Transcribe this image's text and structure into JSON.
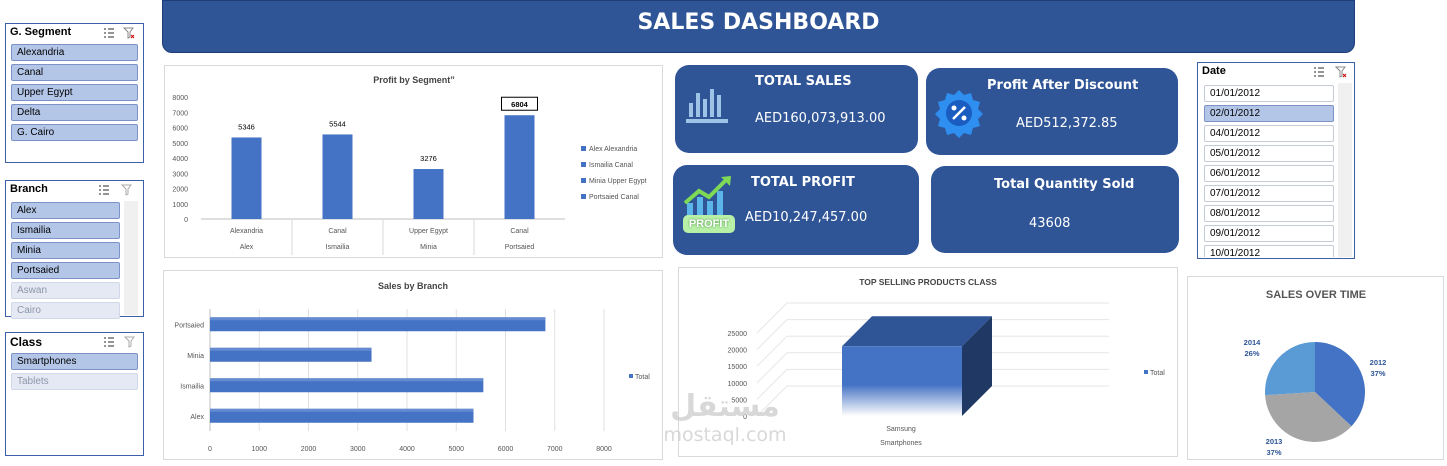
{
  "banner": {
    "title": "SALES DASHBOARD"
  },
  "slicers": {
    "segment": {
      "title": "G. Segment",
      "items": [
        {
          "label": "Alexandria",
          "selected": true
        },
        {
          "label": "Canal",
          "selected": true
        },
        {
          "label": "Upper Egypt",
          "selected": true
        },
        {
          "label": "Delta",
          "selected": true
        },
        {
          "label": "G. Cairo",
          "selected": true
        }
      ]
    },
    "branch": {
      "title": "Branch",
      "items": [
        {
          "label": "Alex",
          "selected": true
        },
        {
          "label": "Ismailia",
          "selected": true
        },
        {
          "label": "Minia",
          "selected": true
        },
        {
          "label": "Portsaied",
          "selected": true
        },
        {
          "label": "Aswan",
          "selected": false
        },
        {
          "label": "Cairo",
          "selected": false
        }
      ]
    },
    "class": {
      "title": "Class",
      "items": [
        {
          "label": "Smartphones",
          "selected": true
        },
        {
          "label": "Tablets",
          "selected": false
        }
      ]
    },
    "date": {
      "title": "Date",
      "items": [
        {
          "label": "01/01/2012",
          "selected": false
        },
        {
          "label": "02/01/2012",
          "selected": true
        },
        {
          "label": "04/01/2012",
          "selected": false
        },
        {
          "label": "05/01/2012",
          "selected": false
        },
        {
          "label": "06/01/2012",
          "selected": false
        },
        {
          "label": "07/01/2012",
          "selected": false
        },
        {
          "label": "08/01/2012",
          "selected": false
        },
        {
          "label": "09/01/2012",
          "selected": false
        },
        {
          "label": "10/01/2012",
          "selected": false
        }
      ]
    }
  },
  "kpis": {
    "total_sales": {
      "title": "TOTAL SALES",
      "value": "AED160,073,913.00"
    },
    "profit_after_discount": {
      "title": "Profit After Discount",
      "value": "AED512,372.85"
    },
    "total_profit": {
      "title": "TOTAL PROFIT",
      "value": "AED10,247,457.00",
      "badge": "PROFIT"
    },
    "total_qty": {
      "title": "Total Quantity Sold",
      "value": "43608"
    }
  },
  "watermark": {
    "line1": "مستقل",
    "line2": "mostaql.com"
  },
  "chart_data": [
    {
      "type": "bar",
      "title": "Profit by Segment”",
      "categories": [
        "Alexandria",
        "Canal",
        "Upper Egypt",
        "Canal"
      ],
      "groups": [
        "Alex",
        "Ismailia",
        "Minia",
        "Portsaied"
      ],
      "values": [
        5346,
        5544,
        3276,
        6804
      ],
      "data_labels": [
        "5346",
        "5544",
        "3276",
        "6804"
      ],
      "yticks": [
        "0",
        "1000",
        "2000",
        "3000",
        "4000",
        "5000",
        "6000",
        "7000",
        "8000"
      ],
      "ylim": [
        0,
        8000
      ],
      "legend": [
        "Alex Alexandria",
        "Ismailia Canal",
        "Minia Upper Egypt",
        "Portsaied Canal"
      ],
      "legend_position": "right",
      "color": "#4472c4"
    },
    {
      "type": "bar",
      "orientation": "horizontal",
      "title": "Sales by Branch",
      "categories": [
        "Alex",
        "Ismailia",
        "Minia",
        "Portsaied"
      ],
      "values": [
        5350,
        5550,
        3280,
        6810
      ],
      "xticks": [
        "0",
        "1000",
        "2000",
        "3000",
        "4000",
        "5000",
        "6000",
        "7000",
        "8000"
      ],
      "xlim": [
        0,
        8000
      ],
      "legend": [
        "Total"
      ],
      "legend_position": "right",
      "color": "#4472c4"
    },
    {
      "type": "bar",
      "style": "3d",
      "title": "TOP SELLING PRODUCTS CLASS",
      "categories": [
        "Samsung"
      ],
      "group": "Smartphones",
      "values": [
        21000
      ],
      "yticks": [
        "0",
        "5000",
        "10000",
        "15000",
        "20000",
        "25000"
      ],
      "ylim": [
        0,
        25000
      ],
      "legend": [
        "Total"
      ],
      "legend_position": "right",
      "color": "#4472c4"
    },
    {
      "type": "pie",
      "title": "SALES OVER TIME",
      "labels": [
        "2012",
        "2013",
        "2014"
      ],
      "values": [
        37,
        37,
        26
      ],
      "percent_labels": [
        "37%",
        "37%",
        "26%"
      ],
      "colors": [
        "#4472c4",
        "#a5a5a5",
        "#5b9bd5"
      ]
    }
  ]
}
